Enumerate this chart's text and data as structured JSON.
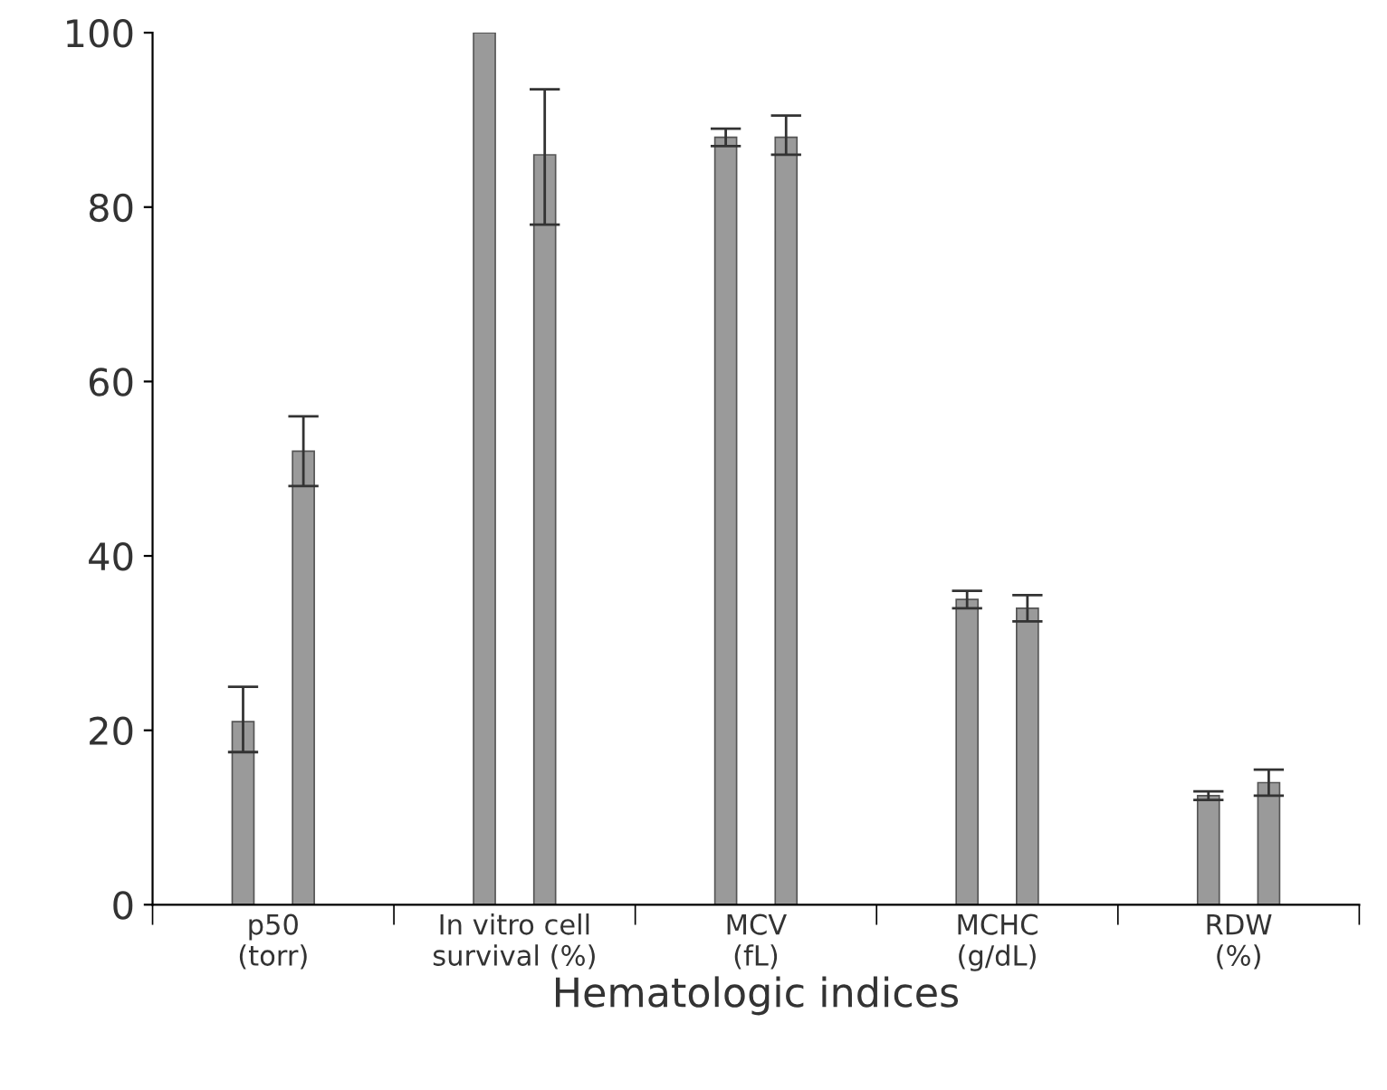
{
  "chart_data": {
    "type": "bar",
    "xlabel": "Hematologic indices",
    "categories": [
      "p50\n(torr)",
      "In vitro cell\nsurvival (%)",
      "MCV\n(fL)",
      "MCHC\n(g/dL)",
      "RDW\n(%)"
    ],
    "series": [
      {
        "color": "#9a9a9a",
        "values": [
          21,
          100,
          88,
          35,
          12.5
        ],
        "errors": [
          [
            17.5,
            25
          ],
          null,
          [
            87,
            89
          ],
          [
            34,
            36
          ],
          [
            12,
            13
          ]
        ]
      },
      {
        "color": "#9a9a9a",
        "values": [
          52,
          86,
          88,
          34,
          14
        ],
        "errors": [
          [
            48,
            56
          ],
          [
            78,
            93.5
          ],
          [
            86,
            90.5
          ],
          [
            32.5,
            35.5
          ],
          [
            12.5,
            15.5
          ]
        ]
      }
    ],
    "ylim": [
      0,
      100
    ],
    "yticks": [
      0,
      20,
      40,
      60,
      80,
      100
    ],
    "grid": false,
    "legend": false
  }
}
